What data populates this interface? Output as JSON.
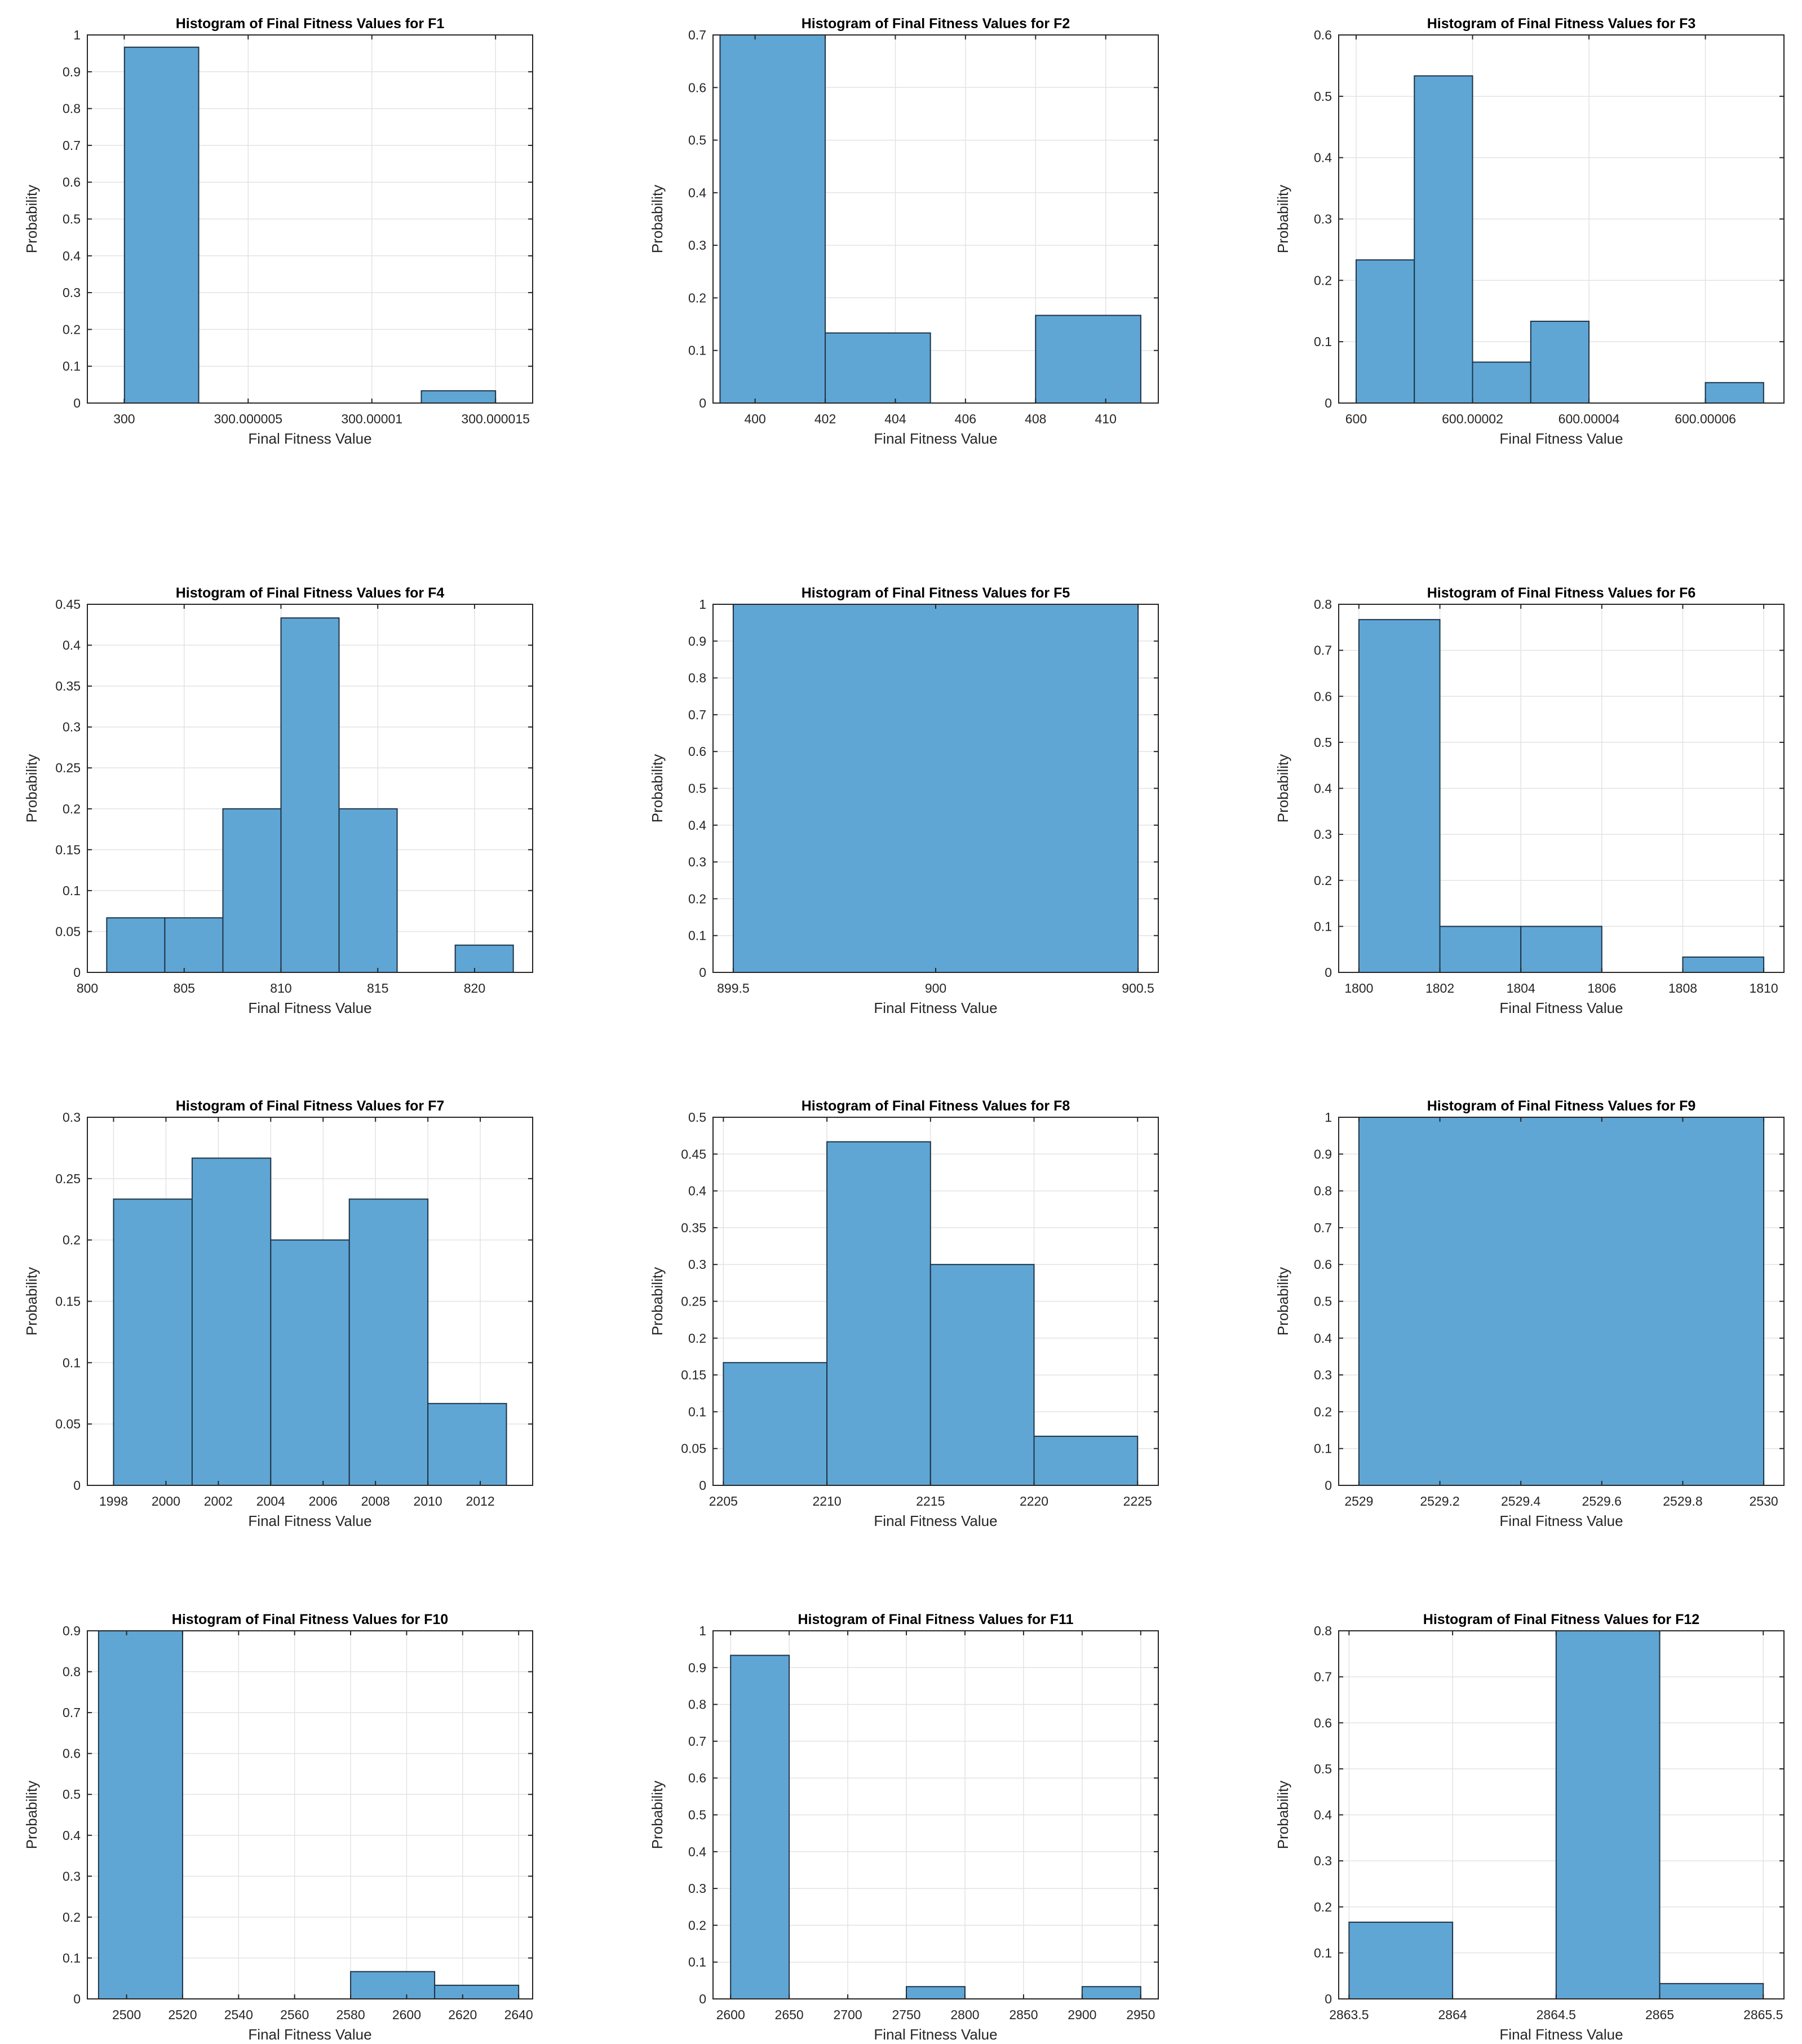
{
  "colors": {
    "bar_fill": "#5fa6d5",
    "bar_edge": "#1f3447",
    "grid": "#e3e3e3",
    "axis": "#262626",
    "background": "#ffffff"
  },
  "chart_data": [
    {
      "type": "bar",
      "title": "Histogram of Final Fitness Values for F1",
      "xlabel": "Final Fitness Value",
      "ylabel": "Probability",
      "xlim": [
        299.9999985,
        300.0000165
      ],
      "ylim": [
        0,
        1
      ],
      "grid": true,
      "xticks": [
        299.99999999,
        300.000005,
        300.00001,
        300.000015
      ],
      "xtick_labels": [
        "300",
        "300.000005",
        "300.00001",
        "300.000015"
      ],
      "yticks": [
        0,
        0.1,
        0.2,
        0.3,
        0.4,
        0.5,
        0.6,
        0.7,
        0.8,
        0.9,
        1
      ],
      "ytick_labels": [
        "0",
        "0.1",
        "0.2",
        "0.3",
        "0.4",
        "0.5",
        "0.6",
        "0.7",
        "0.8",
        "0.9",
        "1"
      ],
      "bins": [
        {
          "start": 300.0,
          "end": 300.000003,
          "value": 0.9667
        },
        {
          "start": 300.000012,
          "end": 300.000015,
          "value": 0.0333
        }
      ]
    },
    {
      "type": "bar",
      "title": "Histogram of Final Fitness Values for F2",
      "xlabel": "Final Fitness Value",
      "ylabel": "Probability",
      "xlim": [
        398.8,
        411.5
      ],
      "ylim": [
        0,
        0.7
      ],
      "grid": true,
      "xticks": [
        400,
        402,
        404,
        406,
        408,
        410
      ],
      "xtick_labels": [
        "400",
        "402",
        "404",
        "406",
        "408",
        "410"
      ],
      "yticks": [
        0,
        0.1,
        0.2,
        0.3,
        0.4,
        0.5,
        0.6,
        0.7
      ],
      "ytick_labels": [
        "0",
        "0.1",
        "0.2",
        "0.3",
        "0.4",
        "0.5",
        "0.6",
        "0.7"
      ],
      "bins": [
        {
          "start": 399,
          "end": 402,
          "value": 0.7
        },
        {
          "start": 402,
          "end": 405,
          "value": 0.1333
        },
        {
          "start": 408,
          "end": 411,
          "value": 0.1667
        }
      ]
    },
    {
      "type": "bar",
      "title": "Histogram of Final Fitness Values for F3",
      "xlabel": "Final Fitness Value",
      "ylabel": "Probability",
      "xlim": [
        599.999997,
        600.0000735
      ],
      "ylim": [
        0,
        0.6
      ],
      "grid": true,
      "xticks": [
        600,
        600.00002,
        600.00004,
        600.00006
      ],
      "xtick_labels": [
        "600",
        "600.00002",
        "600.00004",
        "600.00006"
      ],
      "yticks": [
        0,
        0.1,
        0.2,
        0.3,
        0.4,
        0.5,
        0.6
      ],
      "ytick_labels": [
        "0",
        "0.1",
        "0.2",
        "0.3",
        "0.4",
        "0.5",
        "0.6"
      ],
      "bins": [
        {
          "start": 600.0,
          "end": 600.00001,
          "value": 0.2333
        },
        {
          "start": 600.00001,
          "end": 600.00002,
          "value": 0.5333
        },
        {
          "start": 600.00002,
          "end": 600.00003,
          "value": 0.0667
        },
        {
          "start": 600.00003,
          "end": 600.00004,
          "value": 0.1333
        },
        {
          "start": 600.00006,
          "end": 600.00007,
          "value": 0.0333
        }
      ]
    },
    {
      "type": "bar",
      "title": "Histogram of Final Fitness Values for F4",
      "xlabel": "Final Fitness Value",
      "ylabel": "Probability",
      "xlim": [
        800,
        823
      ],
      "ylim": [
        0,
        0.45
      ],
      "grid": true,
      "xticks": [
        800,
        805,
        810,
        815,
        820
      ],
      "xtick_labels": [
        "800",
        "805",
        "810",
        "815",
        "820"
      ],
      "yticks": [
        0,
        0.05,
        0.1,
        0.15,
        0.2,
        0.25,
        0.3,
        0.35,
        0.4,
        0.45
      ],
      "ytick_labels": [
        "0",
        "0.05",
        "0.1",
        "0.15",
        "0.2",
        "0.25",
        "0.3",
        "0.35",
        "0.4",
        "0.45"
      ],
      "bins": [
        {
          "start": 801,
          "end": 804,
          "value": 0.0667
        },
        {
          "start": 804,
          "end": 807,
          "value": 0.0667
        },
        {
          "start": 807,
          "end": 810,
          "value": 0.2
        },
        {
          "start": 810,
          "end": 813,
          "value": 0.4333
        },
        {
          "start": 813,
          "end": 816,
          "value": 0.2
        },
        {
          "start": 819,
          "end": 822,
          "value": 0.0333
        }
      ]
    },
    {
      "type": "bar",
      "title": "Histogram of Final Fitness Values for F5",
      "xlabel": "Final Fitness Value",
      "ylabel": "Probability",
      "xlim": [
        899.45,
        900.55
      ],
      "ylim": [
        0,
        1
      ],
      "grid": true,
      "xticks": [
        899.5,
        900,
        900.5
      ],
      "xtick_labels": [
        "899.5",
        "900",
        "900.5"
      ],
      "yticks": [
        0,
        0.1,
        0.2,
        0.3,
        0.4,
        0.5,
        0.6,
        0.7,
        0.8,
        0.9,
        1
      ],
      "ytick_labels": [
        "0",
        "0.1",
        "0.2",
        "0.3",
        "0.4",
        "0.5",
        "0.6",
        "0.7",
        "0.8",
        "0.9",
        "1"
      ],
      "bins": [
        {
          "start": 899.5,
          "end": 900.5,
          "value": 1.0
        }
      ]
    },
    {
      "type": "bar",
      "title": "Histogram of Final Fitness Values for F6",
      "xlabel": "Final Fitness Value",
      "ylabel": "Probability",
      "xlim": [
        1799.5,
        1810.5
      ],
      "ylim": [
        0,
        0.8
      ],
      "grid": true,
      "xticks": [
        1800,
        1802,
        1804,
        1806,
        1808,
        1810
      ],
      "xtick_labels": [
        "1800",
        "1802",
        "1804",
        "1806",
        "1808",
        "1810"
      ],
      "yticks": [
        0,
        0.1,
        0.2,
        0.3,
        0.4,
        0.5,
        0.6,
        0.7,
        0.8
      ],
      "ytick_labels": [
        "0",
        "0.1",
        "0.2",
        "0.3",
        "0.4",
        "0.5",
        "0.6",
        "0.7",
        "0.8"
      ],
      "bins": [
        {
          "start": 1800,
          "end": 1802,
          "value": 0.7667
        },
        {
          "start": 1802,
          "end": 1804,
          "value": 0.1
        },
        {
          "start": 1804,
          "end": 1806,
          "value": 0.1
        },
        {
          "start": 1808,
          "end": 1810,
          "value": 0.0333
        }
      ]
    },
    {
      "type": "bar",
      "title": "Histogram of Final Fitness Values for F7",
      "xlabel": "Final Fitness Value",
      "ylabel": "Probability",
      "xlim": [
        1997,
        2014
      ],
      "ylim": [
        0,
        0.3
      ],
      "grid": true,
      "xticks": [
        1998,
        2000,
        2002,
        2004,
        2006,
        2008,
        2010,
        2012
      ],
      "xtick_labels": [
        "1998",
        "2000",
        "2002",
        "2004",
        "2006",
        "2008",
        "2010",
        "2012"
      ],
      "yticks": [
        0,
        0.05,
        0.1,
        0.15,
        0.2,
        0.25,
        0.3
      ],
      "ytick_labels": [
        "0",
        "0.05",
        "0.1",
        "0.15",
        "0.2",
        "0.25",
        "0.3"
      ],
      "bins": [
        {
          "start": 1998,
          "end": 2001,
          "value": 0.2333
        },
        {
          "start": 2001,
          "end": 2004,
          "value": 0.2667
        },
        {
          "start": 2004,
          "end": 2007,
          "value": 0.2
        },
        {
          "start": 2007,
          "end": 2010,
          "value": 0.2333
        },
        {
          "start": 2010,
          "end": 2013,
          "value": 0.0667
        }
      ]
    },
    {
      "type": "bar",
      "title": "Histogram of Final Fitness Values for F8",
      "xlabel": "Final Fitness Value",
      "ylabel": "Probability",
      "xlim": [
        2204.5,
        2226
      ],
      "ylim": [
        0,
        0.5
      ],
      "grid": true,
      "xticks": [
        2205,
        2210,
        2215,
        2220,
        2225
      ],
      "xtick_labels": [
        "2205",
        "2210",
        "2215",
        "2220",
        "2225"
      ],
      "yticks": [
        0,
        0.05,
        0.1,
        0.15,
        0.2,
        0.25,
        0.3,
        0.35,
        0.4,
        0.45,
        0.5
      ],
      "ytick_labels": [
        "0",
        "0.05",
        "0.1",
        "0.15",
        "0.2",
        "0.25",
        "0.3",
        "0.35",
        "0.4",
        "0.45",
        "0.5"
      ],
      "bins": [
        {
          "start": 2205,
          "end": 2210,
          "value": 0.1667
        },
        {
          "start": 2210,
          "end": 2215,
          "value": 0.4667
        },
        {
          "start": 2215,
          "end": 2220,
          "value": 0.3
        },
        {
          "start": 2220,
          "end": 2225,
          "value": 0.0667
        }
      ]
    },
    {
      "type": "bar",
      "title": "Histogram of Final Fitness Values for F9",
      "xlabel": "Final Fitness Value",
      "ylabel": "Probability",
      "xlim": [
        2528.95,
        2530.05
      ],
      "ylim": [
        0,
        1
      ],
      "grid": true,
      "xticks": [
        2529,
        2529.2,
        2529.4,
        2529.6,
        2529.8,
        2530
      ],
      "xtick_labels": [
        "2529",
        "2529.2",
        "2529.4",
        "2529.6",
        "2529.8",
        "2530"
      ],
      "yticks": [
        0,
        0.1,
        0.2,
        0.3,
        0.4,
        0.5,
        0.6,
        0.7,
        0.8,
        0.9,
        1
      ],
      "ytick_labels": [
        "0",
        "0.1",
        "0.2",
        "0.3",
        "0.4",
        "0.5",
        "0.6",
        "0.7",
        "0.8",
        "0.9",
        "1"
      ],
      "bins": [
        {
          "start": 2529,
          "end": 2530,
          "value": 1.0
        }
      ]
    },
    {
      "type": "bar",
      "title": "Histogram of Final Fitness Values for F10",
      "xlabel": "Final Fitness Value",
      "ylabel": "Probability",
      "xlim": [
        2486,
        2645
      ],
      "ylim": [
        0,
        0.9
      ],
      "grid": true,
      "xticks": [
        2500,
        2520,
        2540,
        2560,
        2580,
        2600,
        2620,
        2640
      ],
      "xtick_labels": [
        "2500",
        "2520",
        "2540",
        "2560",
        "2580",
        "2600",
        "2620",
        "2640"
      ],
      "yticks": [
        0,
        0.1,
        0.2,
        0.3,
        0.4,
        0.5,
        0.6,
        0.7,
        0.8,
        0.9
      ],
      "ytick_labels": [
        "0",
        "0.1",
        "0.2",
        "0.3",
        "0.4",
        "0.5",
        "0.6",
        "0.7",
        "0.8",
        "0.9"
      ],
      "bins": [
        {
          "start": 2490,
          "end": 2520,
          "value": 0.9
        },
        {
          "start": 2580,
          "end": 2610,
          "value": 0.0667
        },
        {
          "start": 2610,
          "end": 2640,
          "value": 0.0333
        }
      ]
    },
    {
      "type": "bar",
      "title": "Histogram of Final Fitness Values for F11",
      "xlabel": "Final Fitness Value",
      "ylabel": "Probability",
      "xlim": [
        2585,
        2965
      ],
      "ylim": [
        0,
        1
      ],
      "grid": true,
      "xticks": [
        2600,
        2650,
        2700,
        2750,
        2800,
        2850,
        2900,
        2950
      ],
      "xtick_labels": [
        "2600",
        "2650",
        "2700",
        "2750",
        "2800",
        "2850",
        "2900",
        "2950"
      ],
      "yticks": [
        0,
        0.1,
        0.2,
        0.3,
        0.4,
        0.5,
        0.6,
        0.7,
        0.8,
        0.9,
        1
      ],
      "ytick_labels": [
        "0",
        "0.1",
        "0.2",
        "0.3",
        "0.4",
        "0.5",
        "0.6",
        "0.7",
        "0.8",
        "0.9",
        "1"
      ],
      "bins": [
        {
          "start": 2600,
          "end": 2650,
          "value": 0.9333
        },
        {
          "start": 2750,
          "end": 2800,
          "value": 0.0333
        },
        {
          "start": 2900,
          "end": 2950,
          "value": 0.0333
        }
      ]
    },
    {
      "type": "bar",
      "title": "Histogram of Final Fitness Values for F12",
      "xlabel": "Final Fitness Value",
      "ylabel": "Probability",
      "xlim": [
        2863.45,
        2865.6
      ],
      "ylim": [
        0,
        0.8
      ],
      "grid": true,
      "xticks": [
        2863.5,
        2864,
        2864.5,
        2865,
        2865.5
      ],
      "xtick_labels": [
        "2863.5",
        "2864",
        "2864.5",
        "2865",
        "2865.5"
      ],
      "yticks": [
        0,
        0.1,
        0.2,
        0.3,
        0.4,
        0.5,
        0.6,
        0.7,
        0.8
      ],
      "ytick_labels": [
        "0",
        "0.1",
        "0.2",
        "0.3",
        "0.4",
        "0.5",
        "0.6",
        "0.7",
        "0.8"
      ],
      "bins": [
        {
          "start": 2863.5,
          "end": 2864,
          "value": 0.1667
        },
        {
          "start": 2864.5,
          "end": 2865,
          "value": 0.8
        },
        {
          "start": 2865,
          "end": 2865.5,
          "value": 0.0333
        }
      ]
    }
  ]
}
